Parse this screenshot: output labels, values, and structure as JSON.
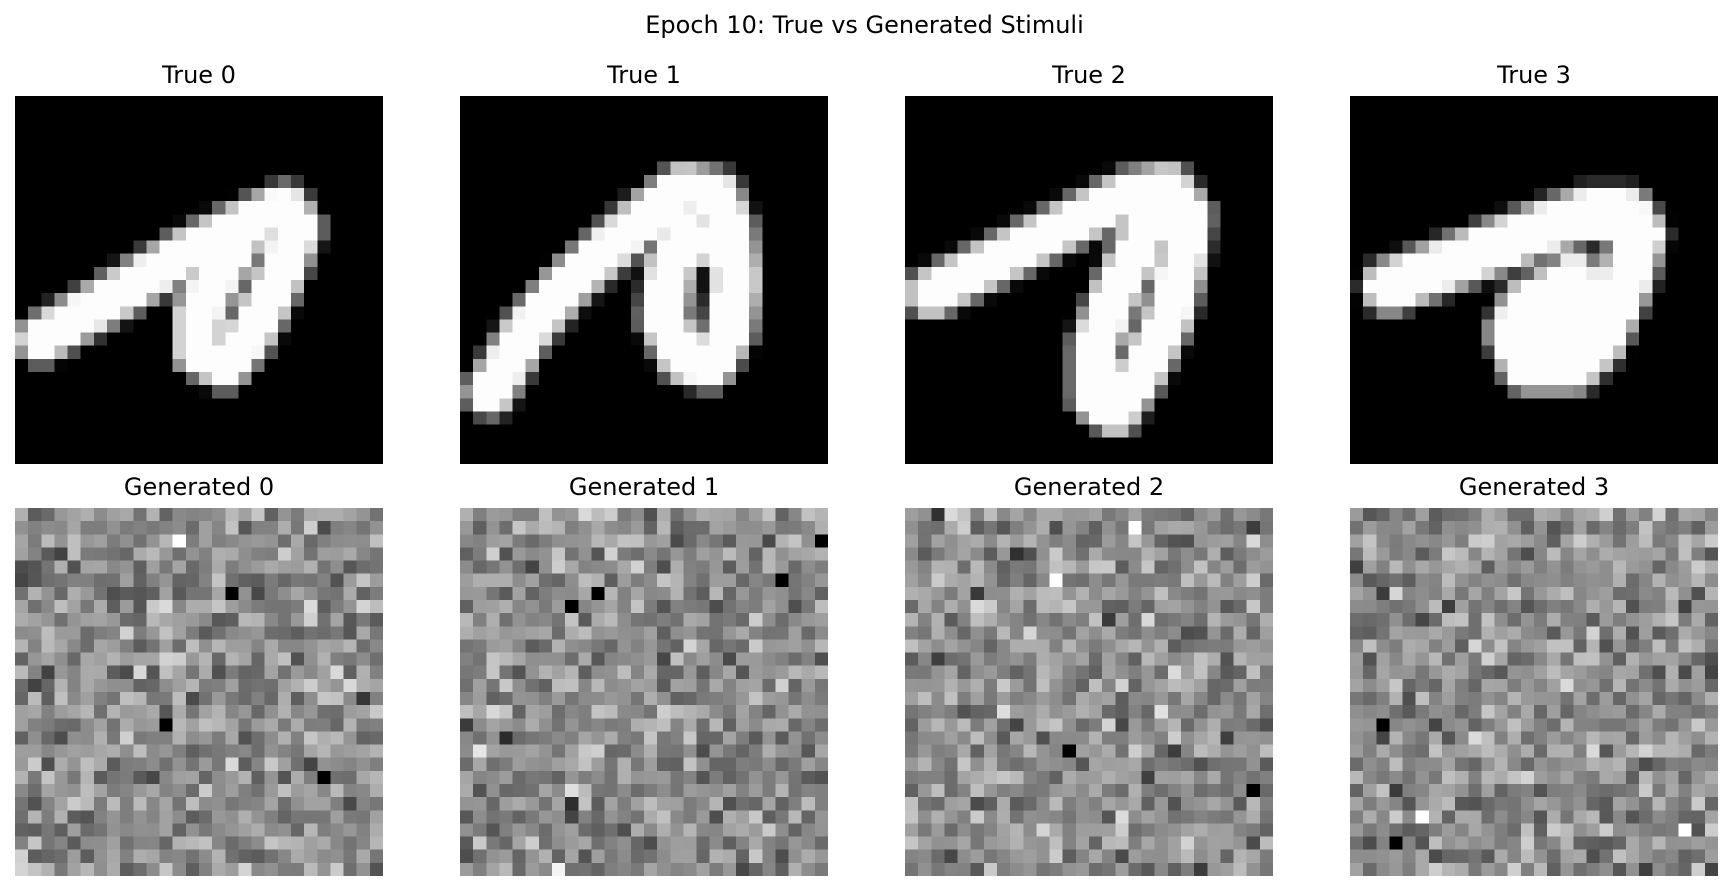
{
  "figure": {
    "title": "Epoch 10: True vs Generated Stimuli",
    "colormap": "gray",
    "grid_size": 28,
    "axes_visible": false
  },
  "true_stimuli": [
    {
      "label": "True 0",
      "content": "handwritten digit, white stroke on black"
    },
    {
      "label": "True 1",
      "content": "handwritten digit, white stroke on black"
    },
    {
      "label": "True 2",
      "content": "handwritten digit, white stroke on black"
    },
    {
      "label": "True 3",
      "content": "handwritten digit, white stroke on black"
    }
  ],
  "generated_stimuli": [
    {
      "label": "Generated 0",
      "content": "gray random noise pattern"
    },
    {
      "label": "Generated 1",
      "content": "gray random noise pattern"
    },
    {
      "label": "Generated 2",
      "content": "gray random noise pattern"
    },
    {
      "label": "Generated 3",
      "content": "gray random noise pattern"
    }
  ]
}
